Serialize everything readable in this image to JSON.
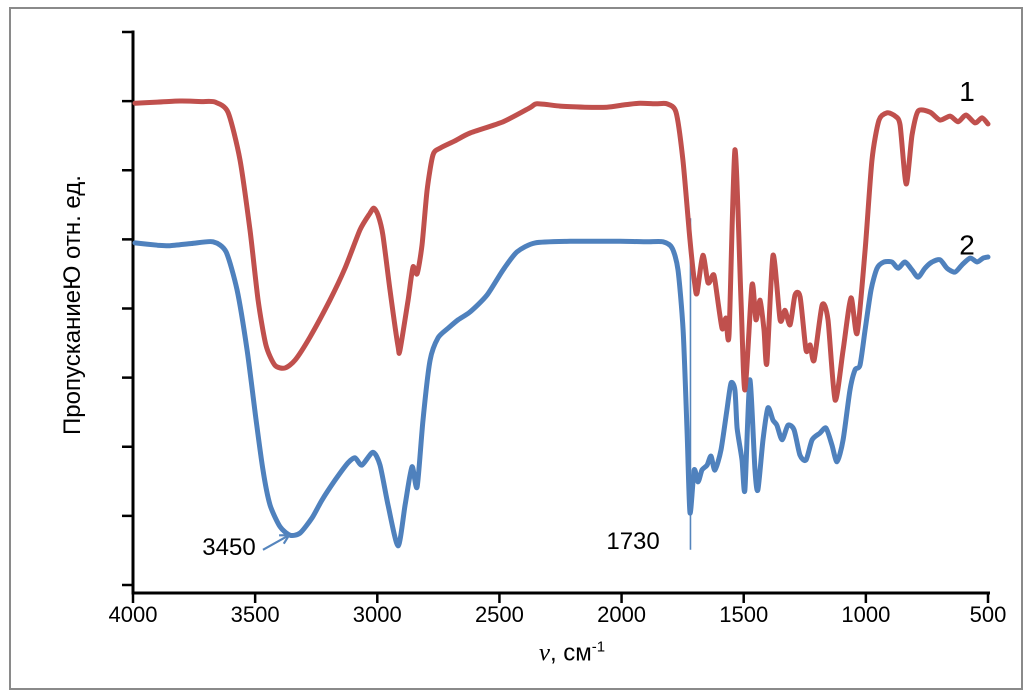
{
  "figure": {
    "background": "#ffffff",
    "border_color": "#8a8a8a",
    "axis_color": "#000000"
  },
  "chart_data": {
    "type": "line",
    "title": "",
    "xlabel": {
      "nu": "ν",
      "rest": ", см",
      "sup": "-1"
    },
    "ylabel": "ПропусканиеЮ отн. ед.",
    "x_range": [
      4000,
      500
    ],
    "x_ticks": [
      4000,
      3500,
      3000,
      2500,
      2000,
      1500,
      1000,
      500
    ],
    "y_axis": {
      "tick_count": 9,
      "labels_shown": false,
      "unit": "отн. ед."
    },
    "legend_position": "none",
    "grid": false,
    "series": [
      {
        "name": "1",
        "color": "#c0504d",
        "label_pos": {
          "nu": 586,
          "t": 89.3
        },
        "points": [
          [
            3992,
            87.3
          ],
          [
            3900,
            87.5
          ],
          [
            3808,
            87.7
          ],
          [
            3720,
            87.6
          ],
          [
            3664,
            87.5
          ],
          [
            3611,
            85.7
          ],
          [
            3562,
            77.2
          ],
          [
            3521,
            64.7
          ],
          [
            3488,
            52.2
          ],
          [
            3456,
            44.2
          ],
          [
            3419,
            40.6
          ],
          [
            3378,
            40.1
          ],
          [
            3337,
            41.5
          ],
          [
            3276,
            45.6
          ],
          [
            3194,
            52.2
          ],
          [
            3132,
            57.9
          ],
          [
            3071,
            64.7
          ],
          [
            3030,
            67.7
          ],
          [
            3014,
            68.6
          ],
          [
            2997,
            67.4
          ],
          [
            2977,
            63.8
          ],
          [
            2948,
            54.0
          ],
          [
            2915,
            43.9
          ],
          [
            2907,
            43.3
          ],
          [
            2874,
            52.2
          ],
          [
            2854,
            58.1
          ],
          [
            2837,
            56.9
          ],
          [
            2817,
            62.0
          ],
          [
            2796,
            71.8
          ],
          [
            2772,
            78.1
          ],
          [
            2743,
            79.3
          ],
          [
            2682,
            80.6
          ],
          [
            2620,
            82.0
          ],
          [
            2485,
            84.0
          ],
          [
            2375,
            86.5
          ],
          [
            2346,
            87.2
          ],
          [
            2252,
            86.8
          ],
          [
            2150,
            86.6
          ],
          [
            2060,
            86.6
          ],
          [
            1990,
            87.0
          ],
          [
            1925,
            87.3
          ],
          [
            1860,
            87.2
          ],
          [
            1814,
            87.2
          ],
          [
            1777,
            85.7
          ],
          [
            1749,
            77.2
          ],
          [
            1720,
            62.9
          ],
          [
            1700,
            54.9
          ],
          [
            1691,
            53.5
          ],
          [
            1667,
            60.2
          ],
          [
            1646,
            55.3
          ],
          [
            1626,
            56.7
          ],
          [
            1618,
            55.8
          ],
          [
            1589,
            47.2
          ],
          [
            1573,
            49.0
          ],
          [
            1560,
            46.2
          ],
          [
            1536,
            79.0
          ],
          [
            1511,
            52.2
          ],
          [
            1495,
            36.2
          ],
          [
            1466,
            54.9
          ],
          [
            1450,
            48.7
          ],
          [
            1433,
            52.2
          ],
          [
            1417,
            46.9
          ],
          [
            1405,
            41.0
          ],
          [
            1380,
            60.2
          ],
          [
            1351,
            48.7
          ],
          [
            1331,
            50.4
          ],
          [
            1310,
            47.8
          ],
          [
            1290,
            53.1
          ],
          [
            1269,
            52.8
          ],
          [
            1245,
            43.3
          ],
          [
            1228,
            44.2
          ],
          [
            1212,
            41.5
          ],
          [
            1179,
            51.3
          ],
          [
            1155,
            48.7
          ],
          [
            1126,
            34.4
          ],
          [
            1093,
            43.3
          ],
          [
            1061,
            52.6
          ],
          [
            1036,
            46.3
          ],
          [
            1003,
            61.1
          ],
          [
            975,
            77.2
          ],
          [
            946,
            84.3
          ],
          [
            913,
            85.6
          ],
          [
            880,
            85.0
          ],
          [
            860,
            83.4
          ],
          [
            835,
            72.9
          ],
          [
            811,
            81.6
          ],
          [
            786,
            85.9
          ],
          [
            737,
            85.7
          ],
          [
            696,
            84.3
          ],
          [
            655,
            85.0
          ],
          [
            622,
            84.0
          ],
          [
            590,
            85.2
          ],
          [
            553,
            83.8
          ],
          [
            524,
            84.7
          ],
          [
            500,
            83.6
          ]
        ]
      },
      {
        "name": "2",
        "color": "#4f81bd",
        "label_pos": {
          "nu": 586,
          "t": 61.9
        },
        "points": [
          [
            3992,
            62.4
          ],
          [
            3900,
            62.0
          ],
          [
            3849,
            61.9
          ],
          [
            3760,
            62.3
          ],
          [
            3672,
            62.6
          ],
          [
            3619,
            60.8
          ],
          [
            3574,
            54.0
          ],
          [
            3533,
            43.3
          ],
          [
            3496,
            30.8
          ],
          [
            3468,
            21.9
          ],
          [
            3439,
            15.7
          ],
          [
            3398,
            11.8
          ],
          [
            3357,
            10.3
          ],
          [
            3316,
            10.7
          ],
          [
            3267,
            13.4
          ],
          [
            3226,
            16.6
          ],
          [
            3173,
            20.1
          ],
          [
            3120,
            23.2
          ],
          [
            3091,
            24.1
          ],
          [
            3063,
            22.8
          ],
          [
            3018,
            25.1
          ],
          [
            2989,
            22.8
          ],
          [
            2956,
            15.7
          ],
          [
            2915,
            8.4
          ],
          [
            2886,
            15.7
          ],
          [
            2858,
            22.5
          ],
          [
            2837,
            18.9
          ],
          [
            2813,
            30.8
          ],
          [
            2784,
            41.5
          ],
          [
            2751,
            45.5
          ],
          [
            2710,
            47.2
          ],
          [
            2669,
            48.7
          ],
          [
            2620,
            50.1
          ],
          [
            2551,
            53.1
          ],
          [
            2485,
            57.6
          ],
          [
            2428,
            60.8
          ],
          [
            2354,
            62.4
          ],
          [
            2211,
            62.7
          ],
          [
            2100,
            62.7
          ],
          [
            2006,
            62.7
          ],
          [
            1900,
            62.6
          ],
          [
            1830,
            62.6
          ],
          [
            1793,
            61.5
          ],
          [
            1769,
            57.6
          ],
          [
            1748,
            46.9
          ],
          [
            1732,
            29.1
          ],
          [
            1720,
            14.3
          ],
          [
            1703,
            21.9
          ],
          [
            1687,
            19.8
          ],
          [
            1671,
            21.9
          ],
          [
            1650,
            22.8
          ],
          [
            1634,
            24.4
          ],
          [
            1618,
            21.9
          ],
          [
            1593,
            25.5
          ],
          [
            1569,
            32.6
          ],
          [
            1552,
            37.4
          ],
          [
            1536,
            36.2
          ],
          [
            1527,
            29.4
          ],
          [
            1507,
            23.7
          ],
          [
            1495,
            18.4
          ],
          [
            1475,
            38.0
          ],
          [
            1454,
            21.9
          ],
          [
            1442,
            18.4
          ],
          [
            1421,
            27.3
          ],
          [
            1401,
            33.0
          ],
          [
            1380,
            30.8
          ],
          [
            1364,
            29.9
          ],
          [
            1343,
            27.3
          ],
          [
            1319,
            29.9
          ],
          [
            1294,
            29.1
          ],
          [
            1270,
            24.6
          ],
          [
            1245,
            23.7
          ],
          [
            1220,
            27.3
          ],
          [
            1188,
            28.5
          ],
          [
            1163,
            29.4
          ],
          [
            1139,
            26.4
          ],
          [
            1118,
            23.4
          ],
          [
            1093,
            27.3
          ],
          [
            1065,
            36.2
          ],
          [
            1044,
            39.8
          ],
          [
            1024,
            40.6
          ],
          [
            1003,
            46.9
          ],
          [
            979,
            54.0
          ],
          [
            954,
            57.9
          ],
          [
            926,
            59.0
          ],
          [
            893,
            59.0
          ],
          [
            868,
            57.9
          ],
          [
            840,
            59.0
          ],
          [
            811,
            57.6
          ],
          [
            786,
            56.3
          ],
          [
            758,
            57.9
          ],
          [
            729,
            59.0
          ],
          [
            696,
            59.4
          ],
          [
            668,
            57.9
          ],
          [
            635,
            57.2
          ],
          [
            606,
            58.5
          ],
          [
            573,
            59.7
          ],
          [
            545,
            59.0
          ],
          [
            520,
            59.7
          ],
          [
            500,
            59.9
          ]
        ]
      }
    ],
    "annotations": {
      "band_3450": {
        "text": "3450",
        "pos": {
          "nu": 3607,
          "t": 8.2
        },
        "arrow": {
          "from": {
            "nu": 3468,
            "t": 7.7
          },
          "to": {
            "nu": 3361,
            "t": 10.3
          }
        },
        "color": "#5585bd"
      },
      "band_1730": {
        "text": "1730",
        "pos": {
          "nu": 1953,
          "t": 9.3
        },
        "line": {
          "nu": 1718,
          "t_from": 66.8,
          "t_to": 7.7
        },
        "color": "#5585bd"
      }
    }
  }
}
